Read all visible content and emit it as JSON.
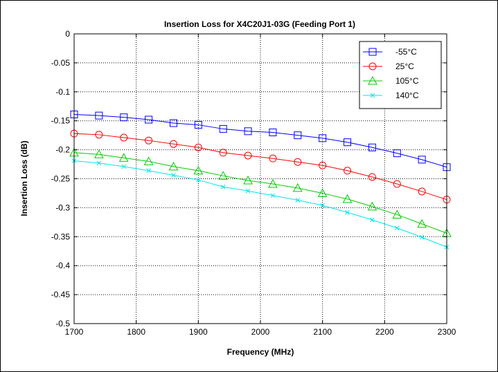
{
  "chart_data": {
    "type": "line",
    "title": "Insertion Loss for X4C20J1-03G (Feeding Port 1)",
    "xlabel": "Frequency (MHz)",
    "ylabel": "Insertion Loss (dB)",
    "xlim": [
      1700,
      2300
    ],
    "ylim": [
      -0.5,
      0
    ],
    "xticks": [
      "1700",
      "1800",
      "1900",
      "2000",
      "2100",
      "2200",
      "2300"
    ],
    "yticks": [
      "0",
      "-0.05",
      "-0.1",
      "-0.15",
      "-0.2",
      "-0.25",
      "-0.3",
      "-0.35",
      "-0.4",
      "-0.45",
      "-0.5"
    ],
    "grid": true,
    "legend": "top-right",
    "x": [
      1700,
      1740,
      1780,
      1820,
      1860,
      1900,
      1940,
      1980,
      2020,
      2060,
      2100,
      2140,
      2180,
      2220,
      2260,
      2300
    ],
    "series": [
      {
        "name": "-55°C",
        "color": "#0000ff",
        "marker": "square",
        "values": [
          -0.139,
          -0.141,
          -0.144,
          -0.148,
          -0.154,
          -0.157,
          -0.164,
          -0.168,
          -0.17,
          -0.175,
          -0.18,
          -0.187,
          -0.196,
          -0.206,
          -0.217,
          -0.23
        ]
      },
      {
        "name": "25°C",
        "color": "#ff0000",
        "marker": "circle",
        "values": [
          -0.172,
          -0.174,
          -0.179,
          -0.184,
          -0.19,
          -0.196,
          -0.205,
          -0.21,
          -0.215,
          -0.221,
          -0.227,
          -0.236,
          -0.247,
          -0.259,
          -0.272,
          -0.286
        ]
      },
      {
        "name": "105°C",
        "color": "#00cc00",
        "marker": "triangle",
        "values": [
          -0.205,
          -0.208,
          -0.214,
          -0.22,
          -0.229,
          -0.236,
          -0.245,
          -0.253,
          -0.259,
          -0.266,
          -0.275,
          -0.285,
          -0.298,
          -0.312,
          -0.328,
          -0.344
        ]
      },
      {
        "name": "140°C",
        "color": "#00e5ee",
        "marker": "x",
        "values": [
          -0.219,
          -0.223,
          -0.229,
          -0.236,
          -0.244,
          -0.252,
          -0.264,
          -0.271,
          -0.279,
          -0.287,
          -0.296,
          -0.308,
          -0.321,
          -0.335,
          -0.351,
          -0.368
        ]
      }
    ]
  }
}
